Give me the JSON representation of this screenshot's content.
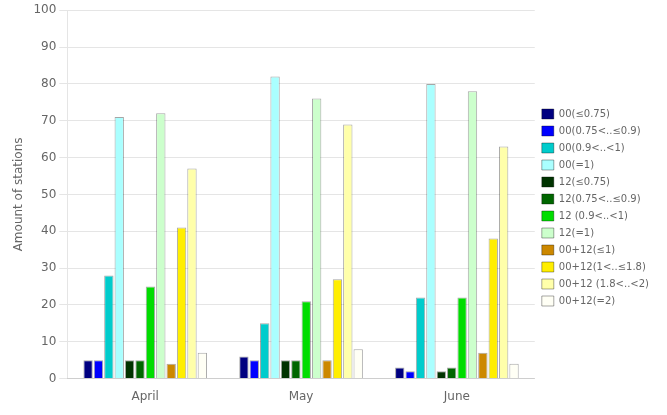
{
  "chart_data": {
    "type": "bar",
    "categories": [
      "April",
      "May",
      "June"
    ],
    "series": [
      {
        "name": "00(≤0.75)",
        "color": "#000080",
        "values": [
          5,
          6,
          3
        ]
      },
      {
        "name": "00(0.75<..≤0.9)",
        "color": "#0000FF",
        "values": [
          5,
          5,
          2
        ]
      },
      {
        "name": "00(0.9<..<1)",
        "color": "#00CCCC",
        "values": [
          28,
          15,
          22
        ]
      },
      {
        "name": "00(=1)",
        "color": "#AAFFFF",
        "values": [
          71,
          82,
          80
        ]
      },
      {
        "name": "12(≤0.75)",
        "color": "#003300",
        "values": [
          5,
          5,
          2
        ]
      },
      {
        "name": "12(0.75<..≤0.9)",
        "color": "#006600",
        "values": [
          5,
          5,
          3
        ]
      },
      {
        "name": "12 (0.9<..<1)",
        "color": "#00DD00",
        "values": [
          25,
          21,
          22
        ]
      },
      {
        "name": "12(=1)",
        "color": "#CCFFCC",
        "values": [
          72,
          76,
          78
        ]
      },
      {
        "name": "00+12(≤1)",
        "color": "#CC8800",
        "values": [
          4,
          5,
          7
        ]
      },
      {
        "name": "00+12(1<..≤1.8)",
        "color": "#FFEE00",
        "values": [
          41,
          27,
          38
        ]
      },
      {
        "name": "00+12 (1.8<..<2)",
        "color": "#FFFFAA",
        "values": [
          57,
          69,
          63
        ]
      },
      {
        "name": "00+12(=2)",
        "color": "#FFFFF5",
        "values": [
          7,
          8,
          4
        ]
      }
    ],
    "ylabel": "Amount of stations",
    "ylim": [
      0,
      100
    ],
    "yticks": [
      0,
      10,
      20,
      30,
      40,
      50,
      60,
      70,
      80,
      90,
      100
    ],
    "grid": true,
    "legend": "right"
  }
}
